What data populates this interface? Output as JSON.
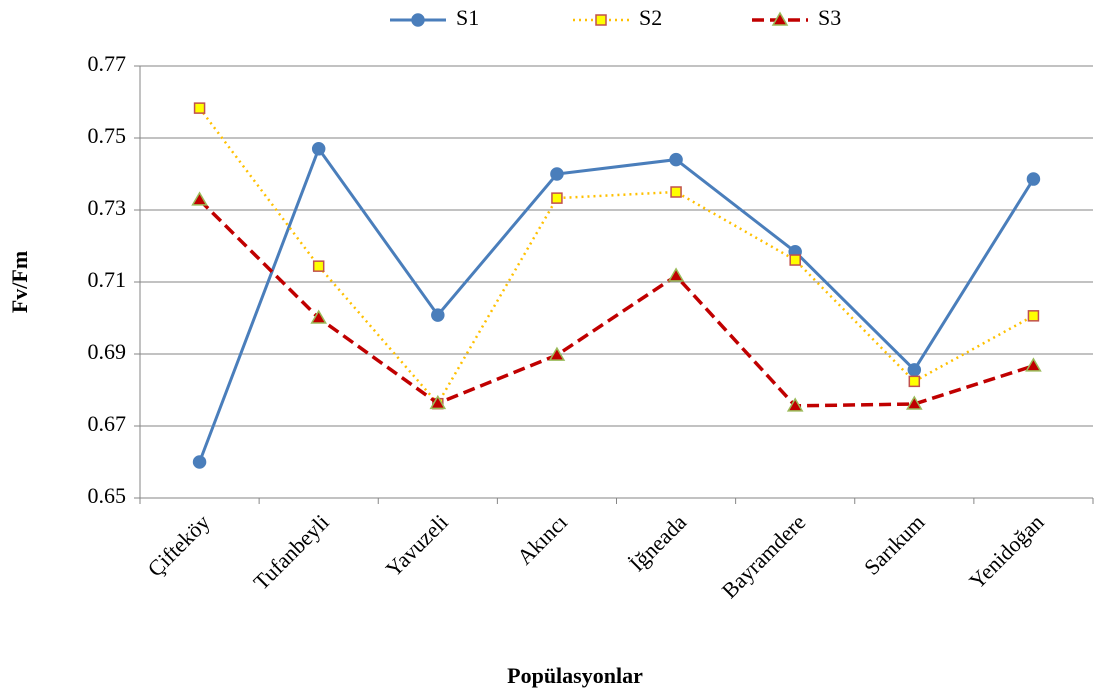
{
  "chart_data": {
    "type": "line",
    "xlabel": "Popülasyonlar",
    "ylabel": "Fv/Fm",
    "categories": [
      "Çifteköy",
      "Tufanbeyli",
      "Yavuzeli",
      "Akıncı",
      "İğneada",
      "Bayramdere",
      "Sarıkum",
      "Yenidoğan"
    ],
    "series": [
      {
        "name": "S1",
        "color": "#4a7ebb",
        "line_style": "solid",
        "marker": "circle",
        "marker_fill": "#4a7ebb",
        "marker_edge": "#4a7ebb",
        "values": [
          0.66,
          0.747,
          0.7008,
          0.74,
          0.744,
          0.7184,
          0.6856,
          0.7386
        ]
      },
      {
        "name": "S2",
        "color": "#ffc000",
        "line_style": "dotted",
        "marker": "square",
        "marker_fill": "#ffff00",
        "marker_edge": "#c0504d",
        "values": [
          0.7583,
          0.7144,
          0.6762,
          0.7333,
          0.735,
          0.7161,
          0.6824,
          0.7006
        ]
      },
      {
        "name": "S3",
        "color": "#c00000",
        "line_style": "dashed",
        "marker": "triangle",
        "marker_fill": "#c00000",
        "marker_edge": "#9bbb59",
        "values": [
          0.7328,
          0.7,
          0.6763,
          0.6897,
          0.7117,
          0.6756,
          0.6761,
          0.6867
        ]
      }
    ],
    "ylim": [
      0.65,
      0.77
    ],
    "yticks": [
      0.65,
      0.67,
      0.69,
      0.71,
      0.73,
      0.75,
      0.77
    ],
    "grid": true,
    "legend": "top"
  }
}
